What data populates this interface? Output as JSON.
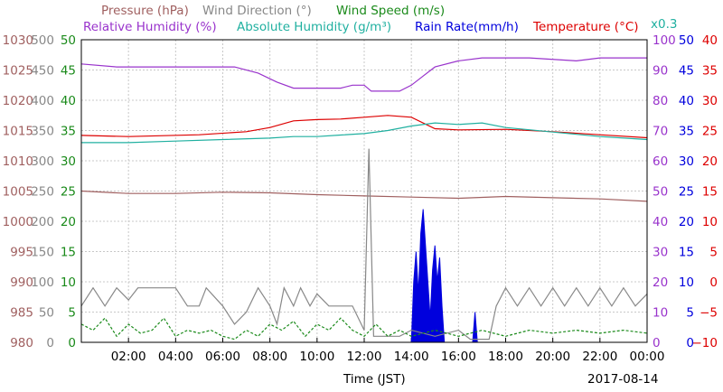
{
  "chart_data": {
    "type": "line",
    "date": "2017-08-14",
    "xlabel": "Time (JST)",
    "x_ticks": [
      "02:00",
      "04:00",
      "06:00",
      "08:00",
      "10:00",
      "12:00",
      "14:00",
      "16:00",
      "18:00",
      "20:00",
      "22:00",
      "00:00"
    ],
    "x_range_hours": [
      0,
      24
    ],
    "grid": true,
    "legend": [
      {
        "key": "pressure",
        "label": "Pressure (hPa)",
        "color": "#a06060"
      },
      {
        "key": "wind_direction",
        "label": "Wind Direction (°)",
        "color": "#888888"
      },
      {
        "key": "wind_speed",
        "label": "Wind Speed (m/s)",
        "color": "#1a8a1a"
      },
      {
        "key": "relative_humidity",
        "label": "Relative Humidity (%)",
        "color": "#9933cc"
      },
      {
        "key": "absolute_humidity",
        "label": "Absolute Humidity (g/m³)",
        "color": "#20b0a0"
      },
      {
        "key": "absolute_humidity_scale",
        "label": "x0.3",
        "color": "#20b0a0"
      },
      {
        "key": "rain_rate",
        "label": "Rain Rate(mm/h)",
        "color": "#0000dd"
      },
      {
        "key": "temperature",
        "label": "Temperature (°C)",
        "color": "#dd0000"
      }
    ],
    "axes": {
      "pressure": {
        "side": "left",
        "color": "#a06060",
        "ticks": [
          980,
          985,
          990,
          995,
          1000,
          1005,
          1010,
          1015,
          1020,
          1025,
          1030
        ],
        "range": [
          980,
          1030
        ]
      },
      "wind_direction": {
        "side": "left",
        "color": "#888888",
        "ticks": [
          0,
          50,
          100,
          150,
          200,
          250,
          300,
          350,
          400,
          450,
          500
        ],
        "range": [
          0,
          500
        ]
      },
      "wind_speed": {
        "side": "left",
        "color": "#1a8a1a",
        "ticks": [
          0,
          5,
          10,
          15,
          20,
          25,
          30,
          35,
          40,
          45,
          50
        ],
        "range": [
          0,
          50
        ]
      },
      "relative_humidity": {
        "side": "right",
        "color": "#9933cc",
        "ticks": [
          0,
          10,
          20,
          30,
          40,
          50,
          60,
          70,
          80,
          90,
          100
        ],
        "range": [
          0,
          100
        ]
      },
      "rain_rate": {
        "side": "right",
        "color": "#0000dd",
        "ticks": [
          0,
          5,
          10,
          15,
          20,
          25,
          30,
          35,
          40,
          45,
          50
        ],
        "range": [
          0,
          50
        ]
      },
      "temperature": {
        "side": "right",
        "color": "#dd0000",
        "ticks": [
          -10,
          -5,
          0,
          5,
          10,
          15,
          20,
          25,
          30,
          35,
          40
        ],
        "range": [
          -10,
          40
        ]
      }
    },
    "series": [
      {
        "name": "Relative Humidity (%)",
        "axis": "relative_humidity",
        "color": "#9933cc",
        "points": [
          [
            0,
            92
          ],
          [
            1.5,
            91
          ],
          [
            6.5,
            91
          ],
          [
            7.5,
            89
          ],
          [
            8.3,
            86
          ],
          [
            9,
            84
          ],
          [
            10,
            84
          ],
          [
            11,
            84
          ],
          [
            11.5,
            85
          ],
          [
            12,
            85
          ],
          [
            12.3,
            83
          ],
          [
            13.5,
            83
          ],
          [
            14,
            85
          ],
          [
            14.5,
            88
          ],
          [
            15,
            91
          ],
          [
            16,
            93
          ],
          [
            17,
            94
          ],
          [
            19,
            94
          ],
          [
            21,
            93
          ],
          [
            22,
            94
          ],
          [
            24,
            94
          ]
        ]
      },
      {
        "name": "Temperature (°C)",
        "axis": "temperature",
        "color": "#dd0000",
        "points": [
          [
            0,
            24.2
          ],
          [
            2,
            24
          ],
          [
            5,
            24.3
          ],
          [
            7,
            24.8
          ],
          [
            8,
            25.5
          ],
          [
            9,
            26.6
          ],
          [
            10,
            26.8
          ],
          [
            11,
            26.9
          ],
          [
            12,
            27.2
          ],
          [
            13,
            27.5
          ],
          [
            14,
            27.2
          ],
          [
            15,
            25.3
          ],
          [
            16,
            25.1
          ],
          [
            18,
            25.2
          ],
          [
            20,
            24.8
          ],
          [
            22,
            24.3
          ],
          [
            24,
            23.8
          ]
        ]
      },
      {
        "name": "Absolute Humidity (g/m³)",
        "axis": "relative_humidity",
        "color": "#20b0a0",
        "points": [
          [
            0,
            66
          ],
          [
            2,
            66
          ],
          [
            4,
            66.5
          ],
          [
            6,
            67
          ],
          [
            8,
            67.5
          ],
          [
            9,
            68
          ],
          [
            10,
            68
          ],
          [
            11,
            68.5
          ],
          [
            12,
            69
          ],
          [
            13,
            70
          ],
          [
            14,
            71.5
          ],
          [
            15,
            72.5
          ],
          [
            16,
            72
          ],
          [
            17,
            72.5
          ],
          [
            18,
            71
          ],
          [
            20,
            69.5
          ],
          [
            22,
            68
          ],
          [
            24,
            67
          ]
        ]
      },
      {
        "name": "Pressure (hPa)",
        "axis": "pressure",
        "color": "#a06060",
        "points": [
          [
            0,
            1005
          ],
          [
            2,
            1004.6
          ],
          [
            4,
            1004.6
          ],
          [
            6,
            1004.8
          ],
          [
            8,
            1004.7
          ],
          [
            10,
            1004.4
          ],
          [
            12,
            1004.2
          ],
          [
            14,
            1004
          ],
          [
            16,
            1003.8
          ],
          [
            18,
            1004.1
          ],
          [
            20,
            1003.9
          ],
          [
            22,
            1003.7
          ],
          [
            24,
            1003.3
          ]
        ]
      },
      {
        "name": "Wind Direction (°)",
        "axis": "wind_direction",
        "color": "#888888",
        "points": [
          [
            0,
            60
          ],
          [
            0.5,
            90
          ],
          [
            1,
            60
          ],
          [
            1.5,
            90
          ],
          [
            2,
            70
          ],
          [
            2.4,
            90
          ],
          [
            3,
            90
          ],
          [
            4,
            90
          ],
          [
            4.5,
            60
          ],
          [
            5,
            60
          ],
          [
            5.3,
            90
          ],
          [
            6,
            60
          ],
          [
            6.5,
            30
          ],
          [
            7,
            50
          ],
          [
            7.5,
            90
          ],
          [
            8,
            60
          ],
          [
            8.3,
            30
          ],
          [
            8.6,
            90
          ],
          [
            9,
            60
          ],
          [
            9.3,
            90
          ],
          [
            9.7,
            60
          ],
          [
            10,
            80
          ],
          [
            10.5,
            60
          ],
          [
            11.5,
            60
          ],
          [
            12,
            20
          ],
          [
            12.2,
            320
          ],
          [
            12.4,
            10
          ],
          [
            13,
            10
          ],
          [
            13.5,
            10
          ],
          [
            14,
            20
          ],
          [
            15,
            10
          ],
          [
            16,
            20
          ],
          [
            16.5,
            5
          ],
          [
            17.3,
            5
          ],
          [
            17.6,
            60
          ],
          [
            18,
            90
          ],
          [
            18.5,
            60
          ],
          [
            19,
            90
          ],
          [
            19.5,
            60
          ],
          [
            20,
            90
          ],
          [
            20.5,
            60
          ],
          [
            21,
            90
          ],
          [
            21.5,
            60
          ],
          [
            22,
            90
          ],
          [
            22.5,
            60
          ],
          [
            23,
            90
          ],
          [
            23.5,
            60
          ],
          [
            24,
            80
          ]
        ]
      },
      {
        "name": "Wind Speed (m/s)",
        "axis": "wind_speed",
        "color": "#1a8a1a",
        "points": [
          [
            0,
            3
          ],
          [
            0.5,
            2
          ],
          [
            1,
            4
          ],
          [
            1.5,
            1
          ],
          [
            2,
            3
          ],
          [
            2.5,
            1.5
          ],
          [
            3,
            2
          ],
          [
            3.5,
            4
          ],
          [
            4,
            1
          ],
          [
            4.5,
            2
          ],
          [
            5,
            1.5
          ],
          [
            5.5,
            2
          ],
          [
            6,
            1
          ],
          [
            6.5,
            0.5
          ],
          [
            7,
            2
          ],
          [
            7.5,
            1
          ],
          [
            8,
            3
          ],
          [
            8.5,
            2
          ],
          [
            9,
            3.5
          ],
          [
            9.5,
            1
          ],
          [
            10,
            3
          ],
          [
            10.5,
            2
          ],
          [
            11,
            4
          ],
          [
            11.5,
            2
          ],
          [
            12,
            1
          ],
          [
            12.5,
            3
          ],
          [
            13,
            1
          ],
          [
            13.5,
            2
          ],
          [
            14,
            1
          ],
          [
            15,
            2
          ],
          [
            16,
            1
          ],
          [
            17,
            2
          ],
          [
            18,
            1
          ],
          [
            19,
            2
          ],
          [
            20,
            1.5
          ],
          [
            21,
            2
          ],
          [
            22,
            1.5
          ],
          [
            23,
            2
          ],
          [
            24,
            1.5
          ]
        ]
      }
    ],
    "rain_rate": {
      "name": "Rain Rate(mm/h)",
      "axis": "rain_rate",
      "color": "#0000dd",
      "points": [
        [
          14.0,
          0
        ],
        [
          14.1,
          10
        ],
        [
          14.2,
          15
        ],
        [
          14.3,
          8
        ],
        [
          14.4,
          18
        ],
        [
          14.5,
          22
        ],
        [
          14.6,
          16
        ],
        [
          14.7,
          10
        ],
        [
          14.8,
          4
        ],
        [
          14.9,
          12
        ],
        [
          15.0,
          16
        ],
        [
          15.1,
          10
        ],
        [
          15.2,
          14
        ],
        [
          15.3,
          6
        ],
        [
          15.4,
          0
        ],
        [
          16.6,
          0
        ],
        [
          16.7,
          5
        ],
        [
          16.8,
          0
        ]
      ]
    }
  }
}
